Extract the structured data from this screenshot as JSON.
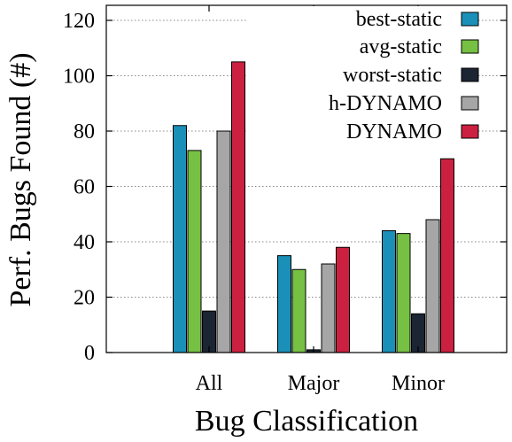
{
  "chart_data": {
    "type": "bar",
    "xlabel": "Bug Classification",
    "ylabel": "Perf. Bugs Found (#)",
    "categories": [
      "All",
      "Major",
      "Minor"
    ],
    "ylim": [
      0,
      120
    ],
    "yticks": [
      0,
      20,
      40,
      60,
      80,
      100,
      120
    ],
    "grid": "horizontal dotted",
    "legend_position": "top-right",
    "series": [
      {
        "name": "best-static",
        "color": "#1a90b8",
        "values": [
          82,
          35,
          44
        ]
      },
      {
        "name": "avg-static",
        "color": "#76c043",
        "values": [
          73,
          30,
          43
        ]
      },
      {
        "name": "worst-static",
        "color": "#1b2533",
        "values": [
          15,
          1,
          14
        ]
      },
      {
        "name": "h-DYNAMO",
        "color": "#a6a6a6",
        "values": [
          80,
          32,
          48
        ]
      },
      {
        "name": "DYNAMO",
        "color": "#cc2040",
        "values": [
          105,
          38,
          70
        ]
      }
    ]
  }
}
